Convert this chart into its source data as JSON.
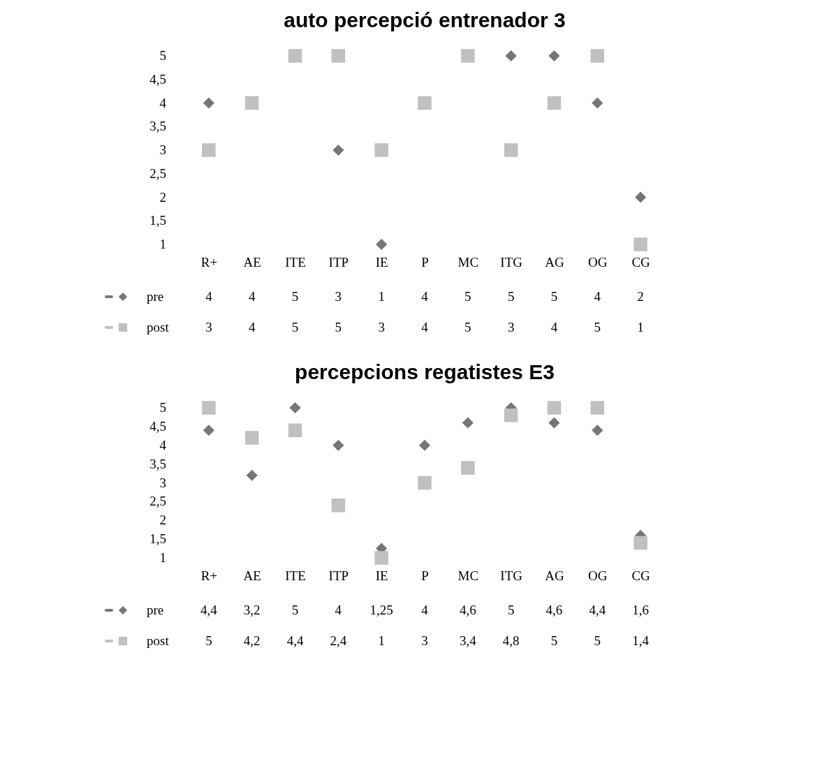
{
  "chart_data": [
    {
      "type": "scatter",
      "title": "auto percepció entrenador 3",
      "categories": [
        "R+",
        "AE",
        "ITE",
        "ITP",
        "IE",
        "P",
        "MC",
        "ITG",
        "AG",
        "OG",
        "CG"
      ],
      "series": [
        {
          "name": "pre",
          "color": "#767676",
          "marker": "diamond",
          "values": [
            4,
            null,
            null,
            3,
            1,
            null,
            null,
            5,
            5,
            4,
            2
          ],
          "value_labels": [
            "4",
            "4",
            "5",
            "3",
            "1",
            "4",
            "5",
            "5",
            "5",
            "4",
            "2"
          ]
        },
        {
          "name": "post",
          "color": "#c0c0c0",
          "marker": "square",
          "values": [
            3,
            4,
            5,
            5,
            3,
            4,
            5,
            3,
            4,
            5,
            1
          ],
          "value_labels": [
            "3",
            "4",
            "5",
            "5",
            "3",
            "4",
            "5",
            "3",
            "4",
            "5",
            "1"
          ]
        }
      ],
      "ylim": [
        1,
        5
      ],
      "yticks": [
        1,
        {
          "value": 1.5,
          "label": "1,5"
        },
        2,
        {
          "value": 2.5,
          "label": "2,5"
        },
        3,
        {
          "value": 3.5,
          "label": "3,5"
        },
        4,
        {
          "value": 4.5,
          "label": "4,5"
        },
        5
      ],
      "legend": "bottom left"
    },
    {
      "type": "scatter",
      "title": "percepcions regatistes E3",
      "categories": [
        "R+",
        "AE",
        "ITE",
        "ITP",
        "IE",
        "P",
        "MC",
        "ITG",
        "AG",
        "OG",
        "CG"
      ],
      "series": [
        {
          "name": "pre",
          "color": "#767676",
          "marker": "diamond",
          "values": [
            4.4,
            3.2,
            5,
            4,
            1.25,
            4,
            4.6,
            5,
            4.6,
            4.4,
            1.6
          ],
          "value_labels": [
            "4,4",
            "3,2",
            "5",
            "4",
            "1,25",
            "4",
            "4,6",
            "5",
            "4,6",
            "4,4",
            "1,6"
          ]
        },
        {
          "name": "post",
          "color": "#c0c0c0",
          "marker": "square",
          "values": [
            5,
            4.2,
            4.4,
            2.4,
            1,
            3,
            3.4,
            4.8,
            5,
            5,
            1.4
          ],
          "value_labels": [
            "5",
            "4,2",
            "4,4",
            "2,4",
            "1",
            "3",
            "3,4",
            "4,8",
            "5",
            "5",
            "1,4"
          ]
        }
      ],
      "ylim": [
        1,
        5
      ],
      "yticks": [
        1,
        {
          "value": 1.5,
          "label": "1,5"
        },
        2,
        {
          "value": 2.5,
          "label": "2,5"
        },
        3,
        {
          "value": 3.5,
          "label": "3,5"
        },
        4,
        {
          "value": 4.5,
          "label": "4,5"
        },
        5
      ],
      "legend": "bottom left"
    }
  ]
}
